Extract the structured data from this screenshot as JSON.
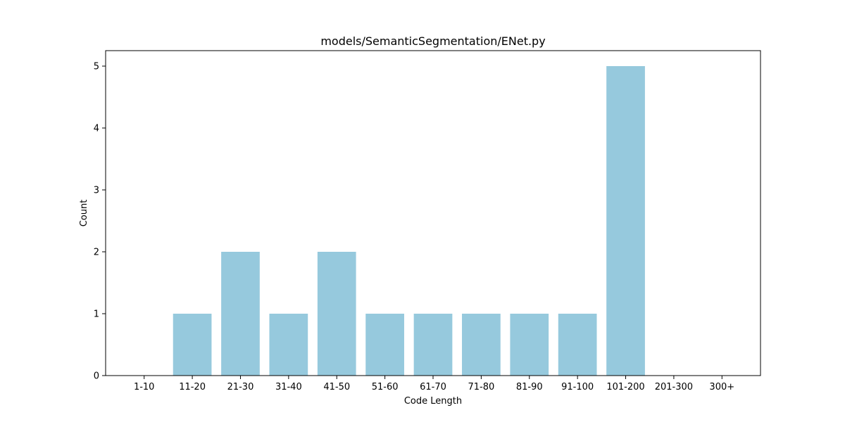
{
  "chart_data": {
    "type": "bar",
    "title": "models/SemanticSegmentation/ENet.py",
    "xlabel": "Code Length",
    "ylabel": "Count",
    "categories": [
      "1-10",
      "11-20",
      "21-30",
      "31-40",
      "41-50",
      "51-60",
      "61-70",
      "71-80",
      "81-90",
      "91-100",
      "101-200",
      "201-300",
      "300+"
    ],
    "values": [
      0,
      1,
      2,
      1,
      2,
      1,
      1,
      1,
      1,
      1,
      5,
      0,
      0
    ],
    "ylim": [
      0,
      5.25
    ],
    "yticks": [
      0,
      1,
      2,
      3,
      4,
      5
    ],
    "bar_color": "#96c9dd",
    "grid": false,
    "legend": "none"
  }
}
